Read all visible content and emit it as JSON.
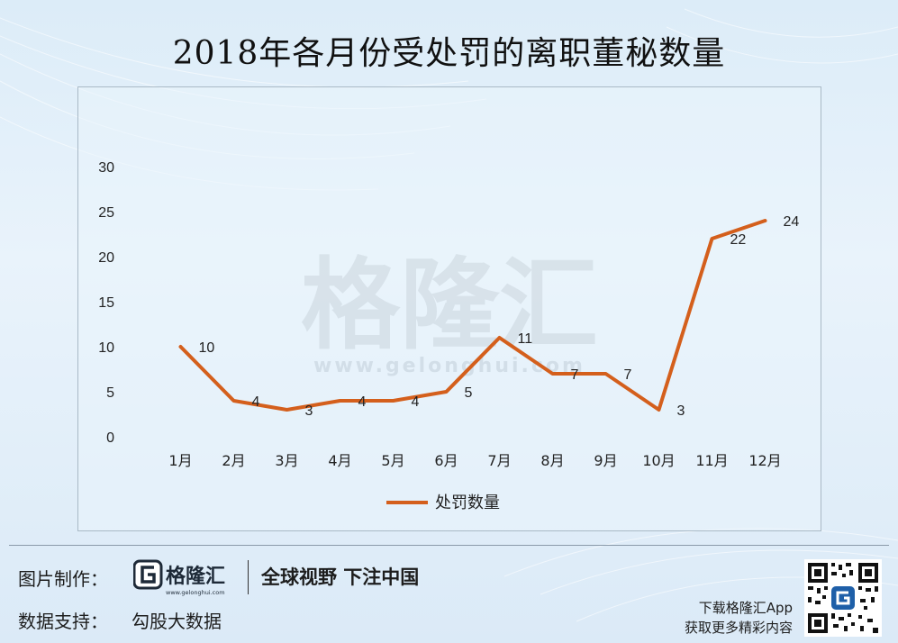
{
  "title": "2018年各月份受处罚的离职董秘数量",
  "watermark": {
    "brand": "格隆汇",
    "url": "www.gelonghui.com"
  },
  "chart_data": {
    "type": "line",
    "title": "2018年各月份受处罚的离职董秘数量",
    "categories": [
      "1月",
      "2月",
      "3月",
      "4月",
      "5月",
      "6月",
      "7月",
      "8月",
      "9月",
      "10月",
      "11月",
      "12月"
    ],
    "series": [
      {
        "name": "处罚数量",
        "values": [
          10,
          4,
          3,
          4,
          4,
          5,
          11,
          7,
          7,
          3,
          22,
          24
        ],
        "color": "#d45f1c"
      }
    ],
    "yticks": [
      0,
      5,
      10,
      15,
      20,
      25,
      30
    ],
    "ylim": [
      0,
      30
    ],
    "grid": false,
    "legend": "bottom",
    "data_labels": true
  },
  "footer": {
    "made_by_label": "图片制作：",
    "brand_name": "格隆汇",
    "brand_url": "www.gelonghui.com",
    "slogan": "全球视野 下注中国",
    "data_support_label": "数据支持：",
    "data_source": "勾股大数据",
    "app_line1": "下载格隆汇App",
    "app_line2": "获取更多精彩内容"
  },
  "colors": {
    "line": "#d45f1c",
    "background": "#e6f1fa",
    "brand": "#1e5fa8"
  }
}
